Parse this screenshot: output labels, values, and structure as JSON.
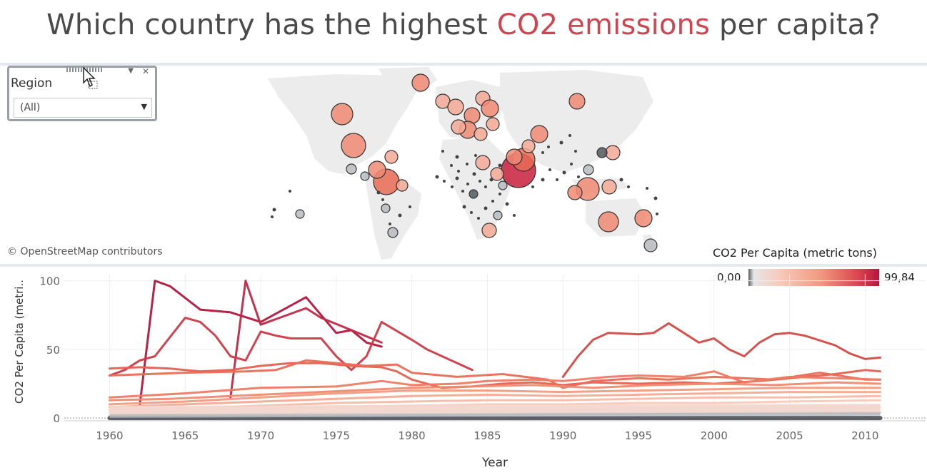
{
  "title": {
    "before": "Which country has the highest ",
    "accent": "CO2 emissions",
    "after": " per capita?",
    "accent_color": "#d0454f"
  },
  "region_filter": {
    "label": "Region",
    "value": "(All)",
    "menu_icon": "chevron-down-icon",
    "close_icon": "close-icon"
  },
  "map": {
    "attribution": "© OpenStreetMap contributors"
  },
  "legend": {
    "title": "CO2 Per Capita (metric tons)",
    "min_label": "0,00",
    "max_label": "99,84",
    "min_value": 0.0,
    "max_value": 99.84,
    "colors": [
      "#5a5f66",
      "#e6e6e6",
      "#f8c8b8",
      "#f09a82",
      "#d8424d",
      "#b3163d"
    ]
  },
  "chart_data": {
    "type": "line",
    "title": "",
    "xlabel": "Year",
    "ylabel": "CO2 Per Capita (metri..",
    "xlim": [
      1957,
      2014
    ],
    "ylim": [
      -2,
      105
    ],
    "x_ticks": [
      1960,
      1965,
      1970,
      1975,
      1980,
      1985,
      1990,
      1995,
      2000,
      2005,
      2010
    ],
    "y_ticks": [
      0,
      50,
      100
    ],
    "grid": true,
    "series": [
      {
        "color": "#b3163d",
        "points": [
          [
            1962,
            10
          ],
          [
            1963,
            100
          ],
          [
            1964,
            96
          ],
          [
            1966,
            79
          ],
          [
            1968,
            77
          ],
          [
            1970,
            70
          ],
          [
            1972,
            82
          ],
          [
            1973,
            88
          ],
          [
            1975,
            62
          ],
          [
            1976,
            64
          ],
          [
            1977,
            55
          ],
          [
            1978,
            52
          ]
        ]
      },
      {
        "color": "#c02844",
        "points": [
          [
            1968,
            15
          ],
          [
            1969,
            100
          ],
          [
            1970,
            68
          ],
          [
            1971,
            72
          ],
          [
            1973,
            80
          ],
          [
            1974,
            73
          ],
          [
            1976,
            64
          ],
          [
            1978,
            55
          ]
        ]
      },
      {
        "color": "#cc3a45",
        "points": [
          [
            1960,
            31
          ],
          [
            1961,
            35
          ],
          [
            1962,
            42
          ],
          [
            1963,
            45
          ],
          [
            1965,
            73
          ],
          [
            1966,
            70
          ],
          [
            1967,
            60
          ],
          [
            1968,
            45
          ],
          [
            1969,
            42
          ],
          [
            1970,
            63
          ],
          [
            1971,
            60
          ],
          [
            1972,
            58
          ],
          [
            1974,
            58
          ],
          [
            1975,
            45
          ],
          [
            1976,
            35
          ],
          [
            1977,
            45
          ],
          [
            1978,
            70
          ],
          [
            1980,
            57
          ],
          [
            1981,
            50
          ],
          [
            1983,
            40
          ],
          [
            1984,
            35
          ]
        ]
      },
      {
        "color": "#d24a46",
        "points": [
          [
            1990,
            30
          ],
          [
            1991,
            45
          ],
          [
            1992,
            57
          ],
          [
            1993,
            62
          ],
          [
            1995,
            61
          ],
          [
            1996,
            62
          ],
          [
            1997,
            69
          ],
          [
            1998,
            62
          ],
          [
            1999,
            55
          ],
          [
            2000,
            58
          ],
          [
            2001,
            50
          ],
          [
            2002,
            45
          ],
          [
            2003,
            55
          ],
          [
            2004,
            61
          ],
          [
            2005,
            62
          ],
          [
            2006,
            60
          ],
          [
            2008,
            53
          ],
          [
            2009,
            47
          ],
          [
            2010,
            43
          ],
          [
            2011,
            44
          ]
        ]
      },
      {
        "color": "#e4604f",
        "points": [
          [
            1960,
            36
          ],
          [
            1962,
            37
          ],
          [
            1964,
            36
          ],
          [
            1966,
            34
          ],
          [
            1968,
            35
          ],
          [
            1970,
            38
          ],
          [
            1972,
            40
          ],
          [
            1974,
            40
          ],
          [
            1976,
            38
          ],
          [
            1978,
            37
          ],
          [
            1979,
            34
          ],
          [
            1980,
            28
          ],
          [
            1982,
            22
          ],
          [
            1984,
            23
          ],
          [
            1986,
            25
          ],
          [
            1988,
            26
          ],
          [
            1990,
            24
          ],
          [
            1992,
            26
          ],
          [
            1995,
            25
          ],
          [
            1998,
            26
          ],
          [
            2000,
            25
          ],
          [
            2003,
            27
          ],
          [
            2006,
            30
          ],
          [
            2008,
            32
          ],
          [
            2010,
            35
          ],
          [
            2011,
            34
          ]
        ]
      },
      {
        "color": "#e96b55",
        "points": [
          [
            1960,
            31
          ],
          [
            1965,
            33
          ],
          [
            1969,
            34
          ],
          [
            1971,
            35
          ],
          [
            1973,
            42
          ],
          [
            1975,
            40
          ],
          [
            1977,
            38
          ],
          [
            1979,
            39
          ],
          [
            1980,
            33
          ],
          [
            1983,
            30
          ],
          [
            1986,
            32
          ],
          [
            1989,
            28
          ],
          [
            1990,
            22
          ],
          [
            1992,
            27
          ],
          [
            1995,
            29
          ],
          [
            1997,
            28
          ],
          [
            2000,
            30
          ],
          [
            2004,
            28
          ],
          [
            2007,
            33
          ],
          [
            2010,
            28
          ],
          [
            2011,
            28
          ]
        ]
      },
      {
        "color": "#ee7b62",
        "points": [
          [
            1960,
            15
          ],
          [
            1965,
            18
          ],
          [
            1970,
            22
          ],
          [
            1975,
            23
          ],
          [
            1978,
            27
          ],
          [
            1980,
            24
          ],
          [
            1983,
            25
          ],
          [
            1985,
            27
          ],
          [
            1988,
            28
          ],
          [
            1990,
            27
          ],
          [
            1993,
            30
          ],
          [
            1995,
            31
          ],
          [
            1998,
            30
          ],
          [
            2000,
            34
          ],
          [
            2002,
            26
          ],
          [
            2005,
            30
          ],
          [
            2008,
            29
          ],
          [
            2011,
            28
          ]
        ]
      },
      {
        "color": "#f18a70",
        "points": [
          [
            1960,
            13
          ],
          [
            1964,
            14
          ],
          [
            1968,
            16
          ],
          [
            1972,
            18
          ],
          [
            1976,
            20
          ],
          [
            1980,
            22
          ],
          [
            1984,
            23
          ],
          [
            1988,
            24
          ],
          [
            1992,
            22
          ],
          [
            1996,
            24
          ],
          [
            2000,
            25
          ],
          [
            2004,
            24
          ],
          [
            2008,
            26
          ],
          [
            2011,
            25
          ]
        ]
      },
      {
        "color": "#f49a80",
        "points": [
          [
            1960,
            10
          ],
          [
            1965,
            12
          ],
          [
            1970,
            15
          ],
          [
            1975,
            18
          ],
          [
            1980,
            20
          ],
          [
            1985,
            20
          ],
          [
            1990,
            19
          ],
          [
            1995,
            20
          ],
          [
            2000,
            21
          ],
          [
            2005,
            22
          ],
          [
            2011,
            22
          ]
        ]
      },
      {
        "color": "#f6aa92",
        "points": [
          [
            1960,
            8
          ],
          [
            1965,
            10
          ],
          [
            1970,
            12
          ],
          [
            1975,
            14
          ],
          [
            1980,
            16
          ],
          [
            1985,
            17
          ],
          [
            1990,
            16
          ],
          [
            1995,
            17
          ],
          [
            2000,
            18
          ],
          [
            2005,
            19
          ],
          [
            2011,
            19
          ]
        ]
      },
      {
        "color": "#f8bba6",
        "points": [
          [
            1960,
            6
          ],
          [
            1965,
            7
          ],
          [
            1970,
            9
          ],
          [
            1975,
            11
          ],
          [
            1980,
            12
          ],
          [
            1985,
            13
          ],
          [
            1990,
            13
          ],
          [
            1995,
            14
          ],
          [
            2000,
            15
          ],
          [
            2005,
            15
          ],
          [
            2011,
            16
          ]
        ]
      },
      {
        "color": "#f9c9b8",
        "points": [
          [
            1960,
            4
          ],
          [
            1965,
            5
          ],
          [
            1970,
            6
          ],
          [
            1975,
            8
          ],
          [
            1980,
            9
          ],
          [
            1985,
            10
          ],
          [
            1990,
            10
          ],
          [
            1995,
            11
          ],
          [
            2000,
            11
          ],
          [
            2005,
            12
          ],
          [
            2011,
            13
          ]
        ]
      },
      {
        "color": "#ead6d0",
        "points": [
          [
            1960,
            2
          ],
          [
            1970,
            3
          ],
          [
            1980,
            5
          ],
          [
            1990,
            6
          ],
          [
            2000,
            7
          ],
          [
            2011,
            8
          ]
        ]
      },
      {
        "color": "#cfcfcf",
        "points": [
          [
            1960,
            1
          ],
          [
            1970,
            1.5
          ],
          [
            1980,
            2.5
          ],
          [
            1990,
            3
          ],
          [
            2000,
            3.5
          ],
          [
            2011,
            4
          ]
        ]
      },
      {
        "color": "#54595f",
        "points": [
          [
            1960,
            0
          ],
          [
            2011,
            0
          ]
        ]
      }
    ]
  }
}
